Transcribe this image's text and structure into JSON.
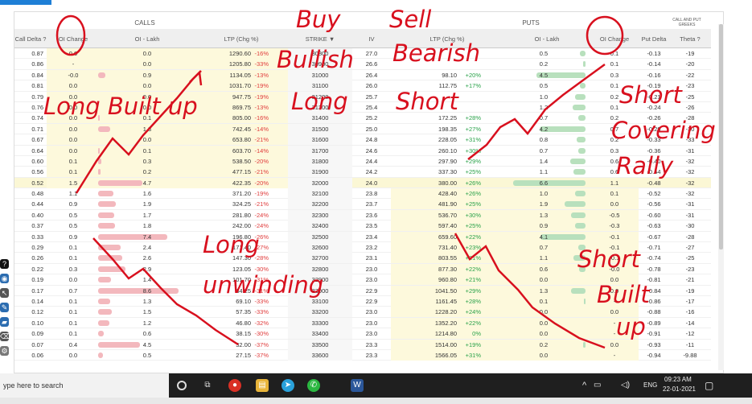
{
  "page": {
    "sections": {
      "calls": "CALLS",
      "puts": "PUTS",
      "greeks": "CALL AND PUT GREEKS"
    }
  },
  "headers": {
    "call_delta": "Call Delta",
    "oi_change_calls": "OI Change",
    "oi_lakh_calls": "OI - Lakh",
    "ltp_calls": "LTP (Chg %)",
    "strike": "STRIKE",
    "iv": "IV",
    "ltp_puts": "LTP (Chg %)",
    "oi_lakh_puts": "OI - Lakh",
    "oi_change_puts": "OI Change",
    "put_delta": "Put Delta",
    "theta": "Theta"
  },
  "rows": [
    {
      "cd": "0.87",
      "coic": "0.0",
      "coi": "0.0",
      "cltp": "1290.60",
      "cchg": "-16%",
      "strike": "30800",
      "iv": "27.0",
      "pltp": "",
      "pchg": "",
      "poi": "0.5",
      "poic": "0.1",
      "pd": "-0.13",
      "th": "-19",
      "cbar": 0,
      "pbar": 0.08
    },
    {
      "cd": "0.86",
      "coic": "-",
      "coi": "0.0",
      "cltp": "1205.80",
      "cchg": "-33%",
      "strike": "30900",
      "iv": "26.6",
      "pltp": "",
      "pchg": "",
      "poi": "0.2",
      "poic": "0.1",
      "pd": "-0.14",
      "th": "-20",
      "cbar": 0,
      "pbar": 0.03
    },
    {
      "cd": "0.84",
      "coic": "-0.0",
      "coi": "0.9",
      "cltp": "1134.05",
      "cchg": "-13%",
      "strike": "31000",
      "iv": "26.4",
      "pltp": "98.10",
      "pchg": "+20%",
      "poi": "4.5",
      "poic": "0.3",
      "pd": "-0.16",
      "th": "-22",
      "cbar": 0.1,
      "pbar": 0.68
    },
    {
      "cd": "0.81",
      "coic": "0.0",
      "coi": "0.0",
      "cltp": "1031.70",
      "cchg": "-19%",
      "strike": "31100",
      "iv": "26.0",
      "pltp": "112.75",
      "pchg": "+17%",
      "poi": "0.5",
      "poic": "0.1",
      "pd": "-0.19",
      "th": "-23",
      "cbar": 0,
      "pbar": 0.08
    },
    {
      "cd": "0.79",
      "coic": "0.0",
      "coi": "0.0",
      "cltp": "947.75",
      "cchg": "-19%",
      "strike": "31200",
      "iv": "25.7",
      "pltp": "",
      "pchg": "",
      "poi": "1.0",
      "poic": "0.2",
      "pd": "-0.21",
      "th": "-25",
      "cbar": 0,
      "pbar": 0.15
    },
    {
      "cd": "0.76",
      "coic": "0.0",
      "coi": "0.0",
      "cltp": "869.75",
      "cchg": "-13%",
      "strike": "31300",
      "iv": "25.4",
      "pltp": "",
      "pchg": "",
      "poi": "1.2",
      "poic": "0.1",
      "pd": "-0.24",
      "th": "-26",
      "cbar": 0,
      "pbar": 0.18
    },
    {
      "cd": "0.74",
      "coic": "0.0",
      "coi": "0.1",
      "cltp": "805.00",
      "cchg": "-16%",
      "strike": "31400",
      "iv": "25.2",
      "pltp": "172.25",
      "pchg": "+28%",
      "poi": "0.7",
      "poic": "0.2",
      "pd": "-0.26",
      "th": "-28",
      "cbar": 0.02,
      "pbar": 0.1
    },
    {
      "cd": "0.71",
      "coic": "0.0",
      "coi": "1.3",
      "cltp": "742.45",
      "cchg": "-14%",
      "strike": "31500",
      "iv": "25.0",
      "pltp": "198.35",
      "pchg": "+27%",
      "poi": "4.2",
      "poic": "0.7",
      "pd": "-0.29",
      "th": "-30",
      "cbar": 0.18,
      "pbar": 0.63
    },
    {
      "cd": "0.67",
      "coic": "0.0",
      "coi": "0.0",
      "cltp": "653.80",
      "cchg": "-21%",
      "strike": "31600",
      "iv": "24.8",
      "pltp": "228.05",
      "pchg": "+31%",
      "poi": "0.8",
      "poic": "0.2",
      "pd": "-0.33",
      "th": "-33",
      "cbar": 0,
      "pbar": 0.12
    },
    {
      "cd": "0.64",
      "coic": "0.0",
      "coi": "0.1",
      "cltp": "603.70",
      "cchg": "-14%",
      "strike": "31700",
      "iv": "24.6",
      "pltp": "260.10",
      "pchg": "+30%",
      "poi": "0.7",
      "poic": "0.3",
      "pd": "-0.36",
      "th": "-31",
      "cbar": 0.02,
      "pbar": 0.1
    },
    {
      "cd": "0.60",
      "coic": "0.1",
      "coi": "0.3",
      "cltp": "538.50",
      "cchg": "-20%",
      "strike": "31800",
      "iv": "24.4",
      "pltp": "297.90",
      "pchg": "+29%",
      "poi": "1.4",
      "poic": "0.6",
      "pd": "-0.40",
      "th": "-32",
      "cbar": 0.05,
      "pbar": 0.21
    },
    {
      "cd": "0.56",
      "coic": "0.1",
      "coi": "0.2",
      "cltp": "477.15",
      "cchg": "-21%",
      "strike": "31900",
      "iv": "24.2",
      "pltp": "337.30",
      "pchg": "+25%",
      "poi": "1.1",
      "poic": "0.6",
      "pd": "-0.44",
      "th": "-32",
      "cbar": 0.03,
      "pbar": 0.17
    },
    {
      "cd": "0.52",
      "coic": "1.5",
      "coi": "4.7",
      "cltp": "422.35",
      "cchg": "-20%",
      "strike": "32000",
      "iv": "24.0",
      "pltp": "380.00",
      "pchg": "+26%",
      "poi": "6.6",
      "poic": "1.1",
      "pd": "-0.48",
      "th": "-32",
      "cbar": 0.64,
      "pbar": 1.0
    },
    {
      "cd": "0.48",
      "coic": "1.1",
      "coi": "1.6",
      "cltp": "371.20",
      "cchg": "-19%",
      "strike": "32100",
      "iv": "23.8",
      "pltp": "428.40",
      "pchg": "+26%",
      "poi": "1.0",
      "poic": "0.1",
      "pd": "-0.52",
      "th": "-32",
      "cbar": 0.22,
      "pbar": 0.15
    },
    {
      "cd": "0.44",
      "coic": "0.9",
      "coi": "1.9",
      "cltp": "324.25",
      "cchg": "-21%",
      "strike": "32200",
      "iv": "23.7",
      "pltp": "481.90",
      "pchg": "+25%",
      "poi": "1.9",
      "poic": "0.0",
      "pd": "-0.56",
      "th": "-31",
      "cbar": 0.26,
      "pbar": 0.29
    },
    {
      "cd": "0.40",
      "coic": "0.5",
      "coi": "1.7",
      "cltp": "281.80",
      "cchg": "-24%",
      "strike": "32300",
      "iv": "23.6",
      "pltp": "536.70",
      "pchg": "+30%",
      "poi": "1.3",
      "poic": "-0.5",
      "pd": "-0.60",
      "th": "-31",
      "cbar": 0.23,
      "pbar": 0.2
    },
    {
      "cd": "0.37",
      "coic": "0.5",
      "coi": "1.8",
      "cltp": "242.00",
      "cchg": "-24%",
      "strike": "32400",
      "iv": "23.5",
      "pltp": "597.40",
      "pchg": "+25%",
      "poi": "0.9",
      "poic": "-0.3",
      "pd": "-0.63",
      "th": "-30",
      "cbar": 0.24,
      "pbar": 0.14
    },
    {
      "cd": "0.33",
      "coic": "0.9",
      "coi": "7.4",
      "cltp": "196.80",
      "cchg": "-26%",
      "strike": "32500",
      "iv": "23.4",
      "pltp": "659.60",
      "pchg": "+22%",
      "poi": "4.1",
      "poic": "-0.1",
      "pd": "-0.67",
      "th": "-28",
      "cbar": 1.0,
      "pbar": 0.62
    },
    {
      "cd": "0.29",
      "coic": "0.1",
      "coi": "2.4",
      "cltp": "171.40",
      "cchg": "-27%",
      "strike": "32600",
      "iv": "23.2",
      "pltp": "731.40",
      "pchg": "+23%",
      "poi": "0.7",
      "poic": "-0.1",
      "pd": "-0.71",
      "th": "-27",
      "cbar": 0.32,
      "pbar": 0.1
    },
    {
      "cd": "0.26",
      "coic": "0.1",
      "coi": "2.6",
      "cltp": "147.30",
      "cchg": "-28%",
      "strike": "32700",
      "iv": "23.1",
      "pltp": "803.55",
      "pchg": "+21%",
      "poi": "1.1",
      "poic": "-0.1",
      "pd": "-0.74",
      "th": "-25",
      "cbar": 0.35,
      "pbar": 0.17
    },
    {
      "cd": "0.22",
      "coic": "0.3",
      "coi": "2.9",
      "cltp": "123.05",
      "cchg": "-30%",
      "strike": "32800",
      "iv": "23.0",
      "pltp": "877.30",
      "pchg": "+22%",
      "poi": "0.6",
      "poic": "-0.0",
      "pd": "-0.78",
      "th": "-23",
      "cbar": 0.39,
      "pbar": 0.09
    },
    {
      "cd": "0.19",
      "coic": "0.0",
      "coi": "1.4",
      "cltp": "101.70",
      "cchg": "-31%",
      "strike": "32900",
      "iv": "23.0",
      "pltp": "960.80",
      "pchg": "+21%",
      "poi": "0.0",
      "poic": "0.0",
      "pd": "-0.81",
      "th": "-21",
      "cbar": 0.19,
      "pbar": 0
    },
    {
      "cd": "0.17",
      "coic": "0.7",
      "coi": "8.6",
      "cltp": "84.25",
      "cchg": "-31%",
      "strike": "33000",
      "iv": "22.9",
      "pltp": "1041.50",
      "pchg": "+29%",
      "poi": "1.3",
      "poic": "0.0",
      "pd": "-0.84",
      "th": "-19",
      "cbar": 1.16,
      "pbar": 0.2
    },
    {
      "cd": "0.14",
      "coic": "0.1",
      "coi": "1.3",
      "cltp": "69.10",
      "cchg": "-33%",
      "strike": "33100",
      "iv": "22.9",
      "pltp": "1161.45",
      "pchg": "+28%",
      "poi": "0.1",
      "poic": "-",
      "pd": "-0.86",
      "th": "-17",
      "cbar": 0.18,
      "pbar": 0.02
    },
    {
      "cd": "0.12",
      "coic": "0.1",
      "coi": "1.5",
      "cltp": "57.35",
      "cchg": "-33%",
      "strike": "33200",
      "iv": "23.0",
      "pltp": "1228.20",
      "pchg": "+24%",
      "poi": "0.0",
      "poic": "0.0",
      "pd": "-0.88",
      "th": "-16",
      "cbar": 0.2,
      "pbar": 0
    },
    {
      "cd": "0.10",
      "coic": "0.1",
      "coi": "1.2",
      "cltp": "46.80",
      "cchg": "-32%",
      "strike": "33300",
      "iv": "23.0",
      "pltp": "1352.20",
      "pchg": "+22%",
      "poi": "0.0",
      "poic": "-",
      "pd": "-0.89",
      "th": "-14",
      "cbar": 0.16,
      "pbar": 0
    },
    {
      "cd": "0.09",
      "coic": "0.1",
      "coi": "0.6",
      "cltp": "38.15",
      "cchg": "-30%",
      "strike": "33400",
      "iv": "23.0",
      "pltp": "1214.80",
      "pchg": "0%",
      "poi": "0.0",
      "poic": "-",
      "pd": "-0.91",
      "th": "-12",
      "cbar": 0.08,
      "pbar": 0
    },
    {
      "cd": "0.07",
      "coic": "0.4",
      "coi": "4.5",
      "cltp": "32.00",
      "cchg": "-37%",
      "strike": "33500",
      "iv": "23.3",
      "pltp": "1514.00",
      "pchg": "+19%",
      "poi": "0.2",
      "poic": "0.0",
      "pd": "-0.93",
      "th": "-11",
      "cbar": 0.61,
      "pbar": 0.03
    },
    {
      "cd": "0.06",
      "coic": "0.0",
      "coi": "0.5",
      "cltp": "27.15",
      "cchg": "-37%",
      "strike": "33600",
      "iv": "23.3",
      "pltp": "1566.05",
      "pchg": "+31%",
      "poi": "0.0",
      "poic": "-",
      "pd": "-0.94",
      "th": "-9.88",
      "cbar": 0.07,
      "pbar": 0
    }
  ],
  "annotations": {
    "buy": "Buy",
    "sell": "Sell",
    "bullish": "Bullish",
    "bearish": "Bearish",
    "long": "Long",
    "short": "Short",
    "long_built_up": "Long Built up",
    "short_covering": "Short",
    "covering": "Covering",
    "rally": "Rally",
    "long_unwinding_1": "Long",
    "long_unwinding_2": "unwinding",
    "short_built_1": "Short",
    "short_built_2": "Built",
    "short_built_3": "up"
  },
  "taskbar": {
    "search_placeholder": "ype here to search",
    "language": "ENG",
    "time": "09:23 AM",
    "date": "22-01-2021"
  }
}
